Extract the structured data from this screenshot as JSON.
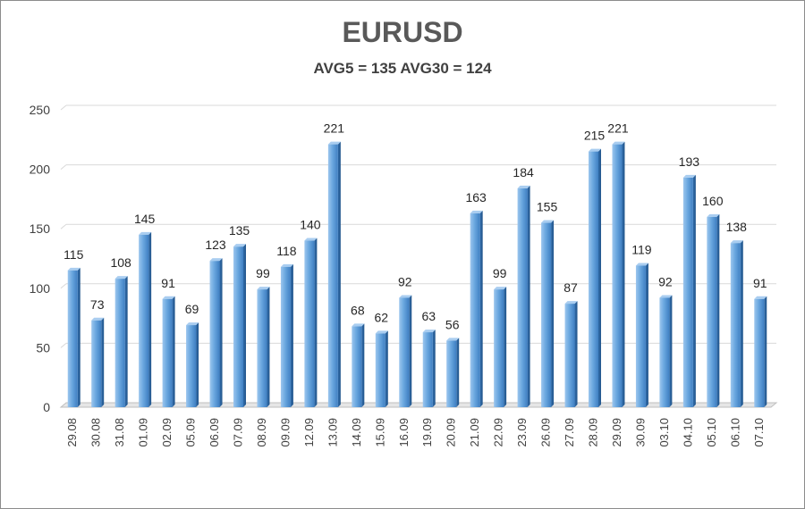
{
  "chart_data": {
    "type": "bar",
    "title": "EURUSD",
    "subtitle": "AVG5 = 135 AVG30 = 124",
    "categories": [
      "29.08",
      "30.08",
      "31.08",
      "01.09",
      "02.09",
      "05.09",
      "06.09",
      "07.09",
      "08.09",
      "09.09",
      "12.09",
      "13.09",
      "14.09",
      "15.09",
      "16.09",
      "19.09",
      "20.09",
      "21.09",
      "22.09",
      "23.09",
      "26.09",
      "27.09",
      "28.09",
      "29.09",
      "30.09",
      "03.10",
      "04.10",
      "05.10",
      "06.10",
      "07.10"
    ],
    "values": [
      115,
      73,
      108,
      145,
      91,
      69,
      123,
      135,
      99,
      118,
      140,
      221,
      68,
      62,
      92,
      63,
      56,
      163,
      99,
      184,
      155,
      87,
      215,
      221,
      119,
      92,
      193,
      160,
      138,
      91
    ],
    "ylim": [
      0,
      250
    ],
    "yticks": [
      0,
      50,
      100,
      150,
      200,
      250
    ],
    "grid": true,
    "legend": "none",
    "bar_color": "#5b9bd5",
    "xlabel": "",
    "ylabel": ""
  }
}
